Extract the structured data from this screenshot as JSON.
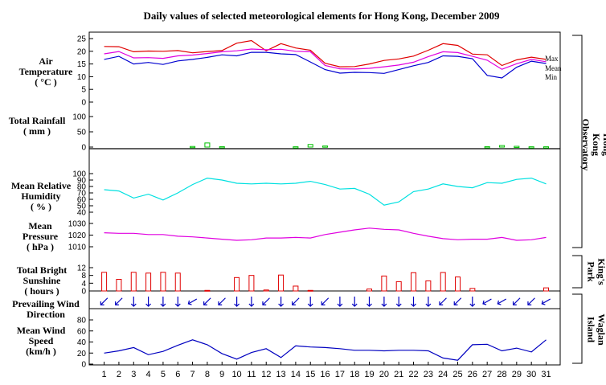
{
  "chart_data": {
    "type": "line",
    "title": "Daily values of selected meteorological elements for Hong Kong, December 2009",
    "days": [
      "1",
      "2",
      "3",
      "4",
      "5",
      "6",
      "7",
      "8",
      "9",
      "10",
      "11",
      "12",
      "13",
      "14",
      "15",
      "16",
      "17",
      "18",
      "19",
      "20",
      "21",
      "22",
      "23",
      "24",
      "25",
      "26",
      "27",
      "28",
      "29",
      "30",
      "31"
    ],
    "stations": [
      "Hong Kong Observatory",
      "King's Park",
      "Waglan Island"
    ],
    "panels": {
      "temperature": {
        "label": [
          "Air",
          "Temperature",
          "( °C )"
        ],
        "ticks": [
          "25",
          "20",
          "15",
          "10",
          "5",
          "0"
        ],
        "ylim": [
          0,
          25
        ],
        "series": [
          {
            "name": "Max",
            "color": "#e00000",
            "values": [
              21.9,
              21.8,
              19.8,
              20.1,
              20.0,
              20.3,
              19.4,
              19.9,
              20.3,
              23.2,
              24.2,
              20.2,
              23.0,
              21.3,
              20.4,
              15.3,
              13.9,
              14.0,
              15.0,
              16.4,
              17.0,
              18.1,
              20.4,
              23.0,
              22.3,
              18.9,
              18.6,
              14.4,
              16.6,
              17.7,
              16.8
            ]
          },
          {
            "name": "Mean",
            "color": "#e000e0",
            "values": [
              19.0,
              19.9,
              17.4,
              17.5,
              17.2,
              18.2,
              18.5,
              19.1,
              19.8,
              20.2,
              20.9,
              20.6,
              20.8,
              20.0,
              19.8,
              14.4,
              13.1,
              13.0,
              13.3,
              13.9,
              14.6,
              15.7,
              17.9,
              19.8,
              19.5,
              18.0,
              16.5,
              12.9,
              15.1,
              16.8,
              15.9
            ]
          },
          {
            "name": "Min",
            "color": "#0000d0",
            "values": [
              16.8,
              18.0,
              15.0,
              15.6,
              14.8,
              16.2,
              16.8,
              17.6,
              18.6,
              18.2,
              19.6,
              19.6,
              19.0,
              18.7,
              15.8,
              12.8,
              11.4,
              11.7,
              11.6,
              11.3,
              12.8,
              14.3,
              15.6,
              18.2,
              18.0,
              17.1,
              10.5,
              9.5,
              13.7,
              16.1,
              15.2
            ]
          }
        ]
      },
      "rainfall": {
        "label": [
          "Total Rainfall",
          "( mm )"
        ],
        "ticks": [
          "100",
          "50",
          "0"
        ],
        "ylim": [
          0,
          100
        ],
        "color": "#00c000",
        "values": [
          0,
          0,
          0,
          0,
          0,
          0,
          2.0,
          13.5,
          1.5,
          0,
          0,
          0,
          0,
          1.0,
          8.5,
          3.5,
          0,
          0,
          0,
          0,
          0,
          0,
          0,
          0,
          0,
          0,
          1.5,
          5.0,
          2.5,
          1.0,
          1.0
        ]
      },
      "humidity": {
        "label": [
          "Mean Relative",
          "Humidity",
          "( % )"
        ],
        "ticks": [
          "100",
          "90",
          "80",
          "70",
          "60",
          "50",
          "40"
        ],
        "ylim": [
          40,
          100
        ],
        "color": "#00e0e0",
        "values": [
          75,
          73,
          62,
          68,
          59,
          70,
          83,
          93,
          90,
          85,
          84,
          85,
          84,
          85,
          88,
          83,
          76,
          77,
          68,
          51,
          56,
          72,
          76,
          84,
          80,
          78,
          86,
          85,
          91,
          93,
          84
        ]
      },
      "pressure": {
        "label": [
          "Mean",
          "Pressure",
          "( hPa )"
        ],
        "ticks": [
          "1030",
          "1020",
          "1010"
        ],
        "ylim": [
          1010,
          1030
        ],
        "color": "#e000e0",
        "values": [
          1022,
          1021.5,
          1021.5,
          1020.5,
          1020.5,
          1019,
          1018.5,
          1017.5,
          1016.5,
          1015.5,
          1016,
          1017.5,
          1017.5,
          1018,
          1017.5,
          1020.5,
          1022.5,
          1024.5,
          1026,
          1025,
          1024.5,
          1021.5,
          1019,
          1017,
          1016,
          1016.5,
          1016.5,
          1018,
          1015.5,
          1016,
          1018
        ]
      },
      "sunshine": {
        "label": [
          "Total Bright",
          "Sunshine",
          "( hours )"
        ],
        "ticks": [
          "12",
          "8",
          "4",
          "0"
        ],
        "ylim": [
          0,
          12
        ],
        "color": "#e00000",
        "values": [
          9.6,
          6.0,
          9.6,
          9.2,
          9.6,
          9.2,
          0,
          0.3,
          0,
          6.9,
          8.0,
          0.5,
          8.2,
          2.5,
          0.3,
          0,
          0,
          0,
          1.0,
          7.7,
          4.8,
          9.4,
          5.2,
          9.5,
          7.2,
          1.3,
          0,
          0,
          0,
          0,
          1.6
        ]
      },
      "wind_direction": {
        "label": [
          "Prevailing Wind",
          "Direction"
        ],
        "color": "#0000c0",
        "degrees": [
          45,
          45,
          0,
          0,
          0,
          0,
          60,
          45,
          45,
          0,
          0,
          45,
          0,
          45,
          0,
          45,
          0,
          0,
          0,
          0,
          0,
          0,
          0,
          45,
          45,
          0,
          60,
          60,
          45,
          45,
          60
        ]
      },
      "wind_speed": {
        "label": [
          "Mean Wind",
          "Speed",
          "(km/h )"
        ],
        "ticks": [
          "80",
          "60",
          "40",
          "20",
          "0"
        ],
        "ylim": [
          0,
          80
        ],
        "color": "#0000c0",
        "values": [
          20,
          24,
          30,
          17,
          23,
          34,
          44,
          35,
          19,
          9,
          21,
          28,
          12,
          33,
          31,
          30,
          28,
          25,
          25,
          24,
          25,
          25,
          24,
          11,
          7,
          35,
          36,
          24,
          29,
          22,
          44
        ]
      }
    }
  }
}
